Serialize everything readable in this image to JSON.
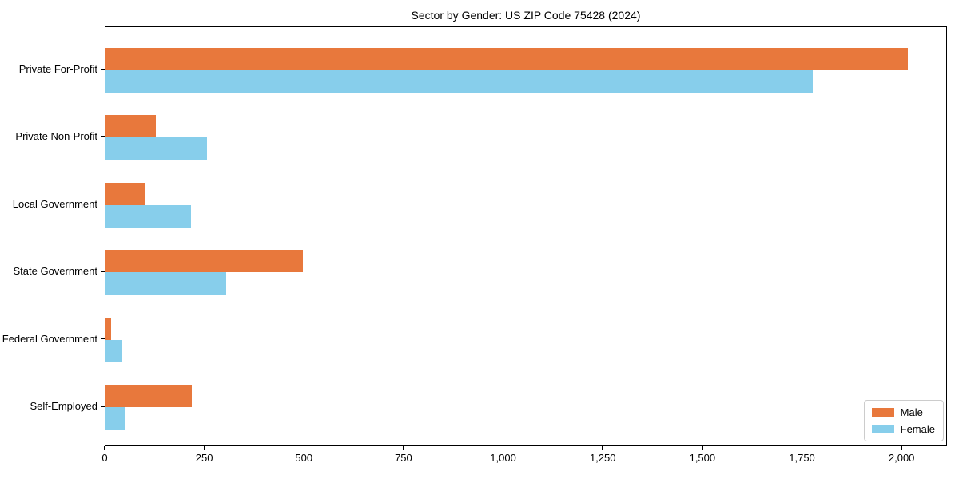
{
  "chart_data": {
    "type": "bar",
    "orientation": "horizontal",
    "title": "Sector by Gender: US ZIP Code 75428 (2024)",
    "categories": [
      "Private For-Profit",
      "Private Non-Profit",
      "Local Government",
      "State Government",
      "Federal Government",
      "Self-Employed"
    ],
    "series": [
      {
        "name": "Male",
        "color": "#E8783C",
        "values": [
          2013,
          126,
          100,
          495,
          15,
          217
        ]
      },
      {
        "name": "Female",
        "color": "#87CEEB",
        "values": [
          1775,
          255,
          215,
          303,
          42,
          48
        ]
      }
    ],
    "xlabel": "",
    "ylabel": "",
    "xlim": [
      0,
      2114
    ],
    "xticks": [
      0,
      250,
      500,
      750,
      1000,
      1250,
      1500,
      1750,
      2000
    ],
    "xtick_labels": [
      "0",
      "250",
      "500",
      "750",
      "1,000",
      "1,250",
      "1,500",
      "1,750",
      "2,000"
    ],
    "grid": false,
    "legend_position": "lower right"
  },
  "colors": {
    "male": "#E8783C",
    "female": "#87CEEB",
    "spine": "#000000",
    "legend_border": "#cccccc",
    "background": "#ffffff"
  }
}
